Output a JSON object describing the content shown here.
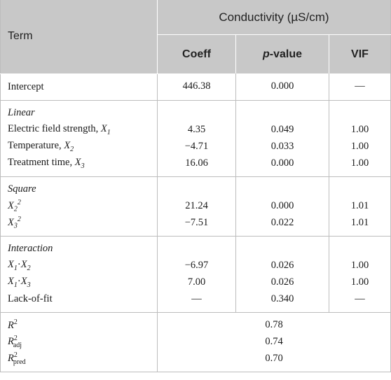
{
  "header": {
    "term": "Term",
    "conductivity": "Conductivity (µS/cm)",
    "coeff": "Coeff",
    "pvalue_italic": "p",
    "pvalue_rest": "-value",
    "vif": "VIF"
  },
  "intercept": {
    "label": "Intercept",
    "coeff": "446.38",
    "p": "0.000",
    "vif": "—"
  },
  "linear": {
    "title": "Linear",
    "rows": [
      {
        "label": "Electric field strength, ",
        "var": "X",
        "sub": "1",
        "coeff": "4.35",
        "p": "0.049",
        "vif": "1.00"
      },
      {
        "label": "Temperature, ",
        "var": "X",
        "sub": "2",
        "coeff": "−4.71",
        "p": "0.033",
        "vif": "1.00"
      },
      {
        "label": "Treatment time, ",
        "var": "X",
        "sub": "3",
        "coeff": "16.06",
        "p": "0.000",
        "vif": "1.00"
      }
    ]
  },
  "square": {
    "title": "Square",
    "rows": [
      {
        "var": "X",
        "sub": "2",
        "sup": "2",
        "coeff": "21.24",
        "p": "0.000",
        "vif": "1.01"
      },
      {
        "var": "X",
        "sub": "3",
        "sup": "2",
        "coeff": "−7.51",
        "p": "0.022",
        "vif": "1.01"
      }
    ]
  },
  "interaction": {
    "title": "Interaction",
    "rows": [
      {
        "a": "X",
        "asub": "1",
        "b": "X",
        "bsub": "2",
        "coeff": "−6.97",
        "p": "0.026",
        "vif": "1.00"
      },
      {
        "a": "X",
        "asub": "1",
        "b": "X",
        "bsub": "3",
        "coeff": "7.00",
        "p": "0.026",
        "vif": "1.00"
      }
    ],
    "lof": {
      "label": "Lack-of-fit",
      "coeff": "—",
      "p": "0.340",
      "vif": "—"
    }
  },
  "stats": {
    "r2": {
      "sym": "R",
      "sup": "2",
      "value": "0.78"
    },
    "r2adj": {
      "sym": "R",
      "sup": "2",
      "sub": "adj",
      "value": "0.74"
    },
    "r2pred": {
      "sym": "R",
      "sup": "2",
      "sub": "pred",
      "value": "0.70"
    }
  }
}
